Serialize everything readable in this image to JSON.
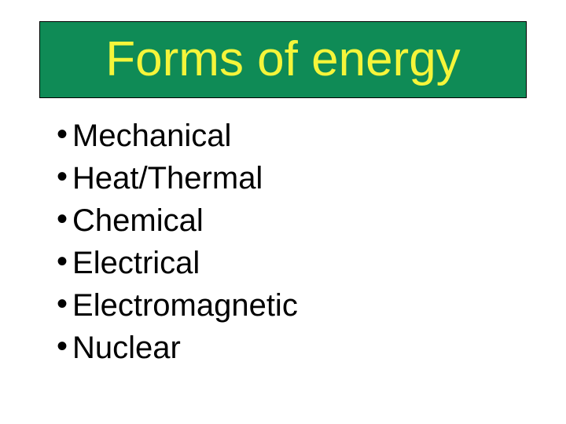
{
  "slide": {
    "title": "Forms of energy",
    "title_color": "#f5f53a",
    "title_bg": "#0f8b56",
    "title_font_family": "Comic Sans MS",
    "title_fontsize": 62,
    "items": [
      {
        "label": "Mechanical"
      },
      {
        "label": "Heat/Thermal"
      },
      {
        "label": "Chemical"
      },
      {
        "label": "Electrical"
      },
      {
        "label": "Electromagnetic"
      },
      {
        "label": "Nuclear"
      }
    ],
    "item_fontsize": 40,
    "item_color": "#000000",
    "bullet_char": "•",
    "background_color": "#ffffff"
  }
}
